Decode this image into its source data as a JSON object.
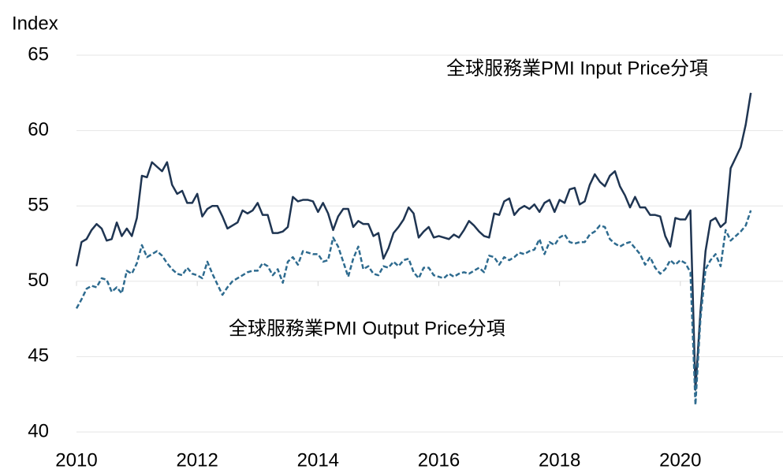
{
  "chart_data": {
    "type": "line",
    "y_label": "Index",
    "annotations": [
      "全球服務業PMI Input Price分項",
      "全球服務業PMI Output Price分項"
    ],
    "x": [
      2010,
      2010.083,
      2010.167,
      2010.25,
      2010.333,
      2010.417,
      2010.5,
      2010.583,
      2010.667,
      2010.75,
      2010.833,
      2010.917,
      2011,
      2011.083,
      2011.167,
      2011.25,
      2011.333,
      2011.417,
      2011.5,
      2011.583,
      2011.667,
      2011.75,
      2011.833,
      2011.917,
      2012,
      2012.083,
      2012.167,
      2012.25,
      2012.333,
      2012.417,
      2012.5,
      2012.583,
      2012.667,
      2012.75,
      2012.833,
      2012.917,
      2013,
      2013.083,
      2013.167,
      2013.25,
      2013.333,
      2013.417,
      2013.5,
      2013.583,
      2013.667,
      2013.75,
      2013.833,
      2013.917,
      2014,
      2014.083,
      2014.167,
      2014.25,
      2014.333,
      2014.417,
      2014.5,
      2014.583,
      2014.667,
      2014.75,
      2014.833,
      2014.917,
      2015,
      2015.083,
      2015.167,
      2015.25,
      2015.333,
      2015.417,
      2015.5,
      2015.583,
      2015.667,
      2015.75,
      2015.833,
      2015.917,
      2016,
      2016.083,
      2016.167,
      2016.25,
      2016.333,
      2016.417,
      2016.5,
      2016.583,
      2016.667,
      2016.75,
      2016.833,
      2016.917,
      2017,
      2017.083,
      2017.167,
      2017.25,
      2017.333,
      2017.417,
      2017.5,
      2017.583,
      2017.667,
      2017.75,
      2017.833,
      2017.917,
      2018,
      2018.083,
      2018.167,
      2018.25,
      2018.333,
      2018.417,
      2018.5,
      2018.583,
      2018.667,
      2018.75,
      2018.833,
      2018.917,
      2019,
      2019.083,
      2019.167,
      2019.25,
      2019.333,
      2019.417,
      2019.5,
      2019.583,
      2019.667,
      2019.75,
      2019.833,
      2019.917,
      2020,
      2020.083,
      2020.167,
      2020.25,
      2020.333,
      2020.417,
      2020.5,
      2020.583,
      2020.667,
      2020.75,
      2020.833,
      2020.917,
      2021,
      2021.083,
      2021.167
    ],
    "series": [
      {
        "name": "全球服務業PMI Input Price分項",
        "color": "#1f3552",
        "dash": false,
        "values": [
          51.0,
          52.6,
          52.8,
          53.4,
          53.8,
          53.5,
          52.7,
          52.8,
          53.9,
          53.0,
          53.5,
          53.0,
          54.2,
          57.0,
          56.9,
          57.9,
          57.6,
          57.3,
          57.9,
          56.4,
          55.8,
          56.0,
          55.2,
          55.2,
          55.8,
          54.3,
          54.8,
          55.0,
          55.0,
          54.3,
          53.5,
          53.7,
          53.9,
          54.7,
          54.5,
          54.7,
          55.2,
          54.4,
          54.4,
          53.2,
          53.2,
          53.3,
          53.6,
          55.6,
          55.3,
          55.4,
          55.4,
          55.3,
          54.6,
          55.2,
          54.5,
          53.4,
          54.3,
          54.8,
          54.8,
          53.6,
          54.0,
          53.8,
          53.8,
          53.0,
          53.2,
          51.5,
          52.2,
          53.2,
          53.6,
          54.1,
          54.9,
          54.5,
          52.9,
          53.3,
          53.6,
          52.9,
          53.0,
          52.9,
          52.8,
          53.1,
          52.9,
          53.4,
          54.0,
          53.7,
          53.3,
          53.0,
          52.9,
          54.5,
          54.4,
          55.3,
          55.5,
          54.4,
          54.8,
          55.0,
          54.8,
          55.1,
          54.6,
          55.2,
          55.4,
          54.6,
          55.4,
          55.2,
          56.1,
          56.2,
          55.1,
          55.3,
          56.4,
          57.1,
          56.6,
          56.3,
          57.0,
          57.3,
          56.3,
          55.7,
          54.9,
          55.6,
          54.9,
          54.9,
          54.4,
          54.4,
          54.3,
          53.0,
          52.3,
          54.2,
          54.1,
          54.1,
          54.7,
          42.8,
          48.0,
          52.0,
          54.0,
          54.2,
          53.6,
          53.9,
          57.5,
          58.2,
          58.9,
          60.4,
          62.5
        ]
      },
      {
        "name": "全球服務業PMI Output Price分項",
        "color": "#2e6b8f",
        "dash": true,
        "values": [
          48.2,
          48.8,
          49.5,
          49.7,
          49.6,
          50.2,
          50.1,
          49.3,
          49.6,
          49.2,
          50.7,
          50.5,
          51.2,
          52.4,
          51.6,
          51.8,
          52.0,
          51.7,
          51.2,
          50.8,
          50.5,
          50.4,
          50.9,
          50.5,
          50.4,
          50.2,
          51.3,
          50.5,
          49.8,
          49.1,
          49.6,
          50.0,
          50.2,
          50.4,
          50.6,
          50.7,
          50.7,
          51.2,
          51.0,
          50.4,
          50.8,
          49.9,
          51.3,
          51.6,
          51.1,
          52.0,
          51.9,
          51.8,
          51.8,
          51.3,
          51.4,
          52.9,
          52.3,
          51.3,
          50.3,
          51.5,
          52.3,
          50.8,
          51.0,
          50.5,
          50.4,
          51.0,
          50.9,
          51.3,
          51.0,
          51.4,
          51.5,
          50.6,
          50.2,
          50.9,
          50.9,
          50.4,
          50.3,
          50.2,
          50.5,
          50.3,
          50.5,
          50.6,
          50.5,
          50.7,
          50.9,
          50.6,
          51.7,
          51.6,
          51.1,
          51.6,
          51.4,
          51.6,
          51.9,
          51.8,
          52.0,
          52.1,
          52.8,
          51.8,
          52.6,
          52.4,
          52.9,
          53.1,
          52.6,
          52.5,
          52.6,
          52.6,
          53.1,
          53.3,
          53.7,
          53.6,
          52.8,
          52.5,
          52.3,
          52.5,
          52.6,
          52.2,
          51.8,
          51.1,
          51.6,
          50.9,
          50.5,
          50.8,
          51.4,
          51.1,
          51.4,
          51.2,
          50.6,
          41.8,
          47.5,
          50.8,
          51.4,
          51.8,
          51.0,
          53.4,
          52.7,
          53.0,
          53.3,
          53.7,
          54.7
        ]
      }
    ],
    "xlim": [
      2010,
      2021.7
    ],
    "xticks": [
      2010,
      2012,
      2014,
      2016,
      2018,
      2020
    ],
    "ylim": [
      40,
      65
    ],
    "yticks": [
      40,
      45,
      50,
      55,
      60,
      65
    ],
    "grid": true
  }
}
